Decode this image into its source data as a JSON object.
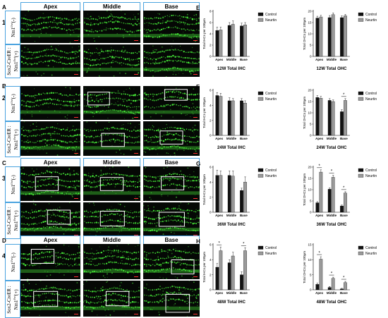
{
  "rows": [
    {
      "letter": "A",
      "age": "12W",
      "headers": [
        "Apex",
        "Middle",
        "Base"
      ],
      "genotypes": [
        {
          "main": "Nm1",
          "sup": "f/wt",
          "tail": "(-)"
        },
        {
          "line1": "Sox2-CreER :",
          "main": "Nm1",
          "sup": "f/wt",
          "tail": "(+)"
        }
      ],
      "boxes": []
    },
    {
      "letter": "B",
      "age": "24W",
      "headers": [],
      "genotypes": [
        {
          "main": "Nm1",
          "sup": "f/wt",
          "tail": "(-)"
        },
        {
          "line1": "Sox2-CreER :",
          "main": "Nm1",
          "sup": "f/wt",
          "tail": "(+)"
        }
      ],
      "boxes": [
        [
          0,
          1,
          0.08,
          0.18,
          0.38,
          0.38
        ],
        [
          0,
          2,
          0.38,
          0.1,
          0.4,
          0.32
        ],
        [
          1,
          1,
          0.32,
          0.35,
          0.4,
          0.38
        ],
        [
          1,
          2,
          0.3,
          0.28,
          0.4,
          0.38
        ]
      ]
    },
    {
      "letter": "C",
      "age": "36W",
      "headers": [
        "Apex",
        "Middle",
        "Base"
      ],
      "genotypes": [
        {
          "main": "Nm1",
          "sup": "f/wt",
          "tail": "(-)"
        },
        {
          "line1": "Sox2-CreER :",
          "main": "Nm1",
          "sup": "f/wt",
          "tail": "(+)"
        }
      ],
      "boxes": [
        [
          0,
          0,
          0.25,
          0.3,
          0.38,
          0.4
        ],
        [
          0,
          1,
          0.3,
          0.32,
          0.4,
          0.38
        ],
        [
          0,
          2,
          0.32,
          0.3,
          0.4,
          0.38
        ],
        [
          1,
          0,
          0.45,
          0.22,
          0.38,
          0.4
        ],
        [
          1,
          1,
          0.3,
          0.25,
          0.42,
          0.42
        ],
        [
          1,
          2,
          0.28,
          0.28,
          0.45,
          0.4
        ]
      ]
    },
    {
      "letter": "D",
      "age": "48W",
      "headers": [
        "Apex",
        "Middle",
        "Base"
      ],
      "genotypes": [
        {
          "main": "Nm1",
          "sup": "f/wt",
          "tail": "(-)"
        },
        {
          "line1": "Sox2-CreER :",
          "main": "Nm1",
          "sup": "f/wt",
          "tail": "(+)"
        }
      ],
      "boxes": [
        [
          0,
          0,
          0.18,
          0.15,
          0.38,
          0.4
        ],
        [
          0,
          2,
          0.5,
          0.45,
          0.4,
          0.4
        ],
        [
          1,
          0,
          0.22,
          0.3,
          0.4,
          0.42
        ],
        [
          1,
          1,
          0.4,
          0.3,
          0.4,
          0.4
        ],
        [
          1,
          2,
          0.4,
          0.38,
          0.42,
          0.5
        ]
      ]
    }
  ],
  "colors": {
    "control": "#111111",
    "neurtin": "#9a9a9a",
    "header_border": "#4aa3df",
    "green": "#4cff3c",
    "roi_box": "#ffffff"
  },
  "charts": [
    {
      "row": 0,
      "col": 0,
      "letter": "E",
      "title": "12W Total IHC",
      "ylabel": "Total IHCs per 100μm",
      "legend": [
        "Control",
        "Neurtin"
      ],
      "yticks": [
        0,
        2,
        4,
        6,
        8
      ],
      "ymax": 8,
      "categories": [
        "Apex",
        "Middle",
        "Base"
      ],
      "series": [
        {
          "name": "Control",
          "values": [
            4.6,
            5.5,
            5.4
          ]
        },
        {
          "name": "Neurtin",
          "values": [
            4.7,
            5.7,
            5.6
          ]
        }
      ],
      "errors": [
        [
          0.6,
          0.5,
          0.5
        ],
        [
          0.5,
          0.6,
          0.4
        ]
      ],
      "sig": []
    },
    {
      "row": 0,
      "col": 1,
      "title": "12W Total OHC",
      "ylabel": "Total OHCs per 100μm",
      "legend": [
        "Control",
        "Neurtin"
      ],
      "yticks": [
        0,
        5,
        10,
        15,
        20
      ],
      "ymax": 20,
      "categories": [
        "Apex",
        "Middle",
        "Base"
      ],
      "series": [
        {
          "name": "Control",
          "values": [
            17.0,
            17.2,
            17.2
          ]
        },
        {
          "name": "Neurtin",
          "values": [
            17.5,
            18.5,
            18.0
          ]
        }
      ],
      "errors": [
        [
          0.8,
          0.9,
          0.8
        ],
        [
          0.7,
          0.8,
          0.6
        ]
      ],
      "sig": []
    },
    {
      "row": 1,
      "col": 0,
      "letter": "F",
      "title": "24W Total IHC",
      "ylabel": "Total IHCs per 100μm",
      "legend": [
        "Control",
        "Neurtin"
      ],
      "yticks": [
        0,
        2,
        4,
        6
      ],
      "ymax": 6,
      "categories": [
        "Apex",
        "Middle",
        "Base"
      ],
      "series": [
        {
          "name": "Control",
          "values": [
            5.3,
            4.6,
            4.6
          ]
        },
        {
          "name": "Neurtin",
          "values": [
            5.2,
            4.6,
            4.3
          ]
        }
      ],
      "errors": [
        [
          0.4,
          0.4,
          0.3
        ],
        [
          0.4,
          0.3,
          0.3
        ]
      ],
      "sig": []
    },
    {
      "row": 1,
      "col": 1,
      "title": "24W Total OHC",
      "ylabel": "Total OHCs per 100μm",
      "legend": [
        "Control",
        "Neurtin"
      ],
      "yticks": [
        0,
        5,
        10,
        15,
        20
      ],
      "ymax": 20,
      "categories": [
        "Apex",
        "Middle",
        "Base"
      ],
      "series": [
        {
          "name": "Control",
          "values": [
            16.8,
            15.5,
            10.5
          ]
        },
        {
          "name": "Neurtin",
          "values": [
            16.5,
            15.0,
            15.5
          ]
        }
      ],
      "errors": [
        [
          0.8,
          0.8,
          0.9
        ],
        [
          0.8,
          0.7,
          0.8
        ]
      ],
      "sig": [
        {
          "cat": 2,
          "label": "*"
        }
      ]
    },
    {
      "row": 2,
      "col": 0,
      "letter": "G",
      "title": "36W Total IHC",
      "ylabel": "Total IHCs per 100μm",
      "legend": [
        "Control",
        "Neurtin"
      ],
      "yticks": [
        0,
        2,
        4,
        6
      ],
      "ymax": 6,
      "categories": [
        "Apex",
        "Middle",
        "Base"
      ],
      "series": [
        {
          "name": "Control",
          "values": [
            4.9,
            4.9,
            2.9
          ]
        },
        {
          "name": "Neurtin",
          "values": [
            4.9,
            4.8,
            4.0
          ]
        }
      ],
      "errors": [
        [
          0.7,
          0.6,
          0.3
        ],
        [
          0.6,
          0.7,
          0.7
        ]
      ],
      "sig": []
    },
    {
      "row": 2,
      "col": 1,
      "title": "36W Total OHC",
      "ylabel": "Total OHCs per 100μm",
      "legend": [
        "Control",
        "Neurtin"
      ],
      "yticks": [
        0,
        5,
        10,
        15,
        20
      ],
      "ymax": 20,
      "categories": [
        "Apex",
        "Middle",
        "Base"
      ],
      "series": [
        {
          "name": "Control",
          "values": [
            4.2,
            10.2,
            2.8
          ]
        },
        {
          "name": "Neurtin",
          "values": [
            17.8,
            15.5,
            8.5
          ]
        }
      ],
      "errors": [
        [
          0.5,
          0.6,
          0.4
        ],
        [
          1.0,
          0.9,
          0.6
        ]
      ],
      "sig": [
        {
          "cat": 0,
          "label": "*"
        },
        {
          "cat": 1,
          "label": "*"
        },
        {
          "cat": 2,
          "label": "*"
        }
      ]
    },
    {
      "row": 3,
      "col": 0,
      "letter": "H",
      "title": "48W Total IHC",
      "ylabel": "Total IHCs per 100μm",
      "legend": [
        "Control",
        "Neurtin"
      ],
      "yticks": [
        0,
        2,
        4,
        6
      ],
      "ymax": 6,
      "categories": [
        "Apex",
        "Middle",
        "Base"
      ],
      "series": [
        {
          "name": "Control",
          "values": [
            3.0,
            3.6,
            2.0
          ]
        },
        {
          "name": "Neurtin",
          "values": [
            5.2,
            4.5,
            5.2
          ]
        }
      ],
      "errors": [
        [
          0.5,
          0.4,
          0.4
        ],
        [
          0.5,
          0.5,
          0.4
        ]
      ],
      "sig": [
        {
          "cat": 0,
          "label": "*"
        },
        {
          "cat": 2,
          "label": "*"
        }
      ]
    },
    {
      "row": 3,
      "col": 1,
      "title": "48W Total OHC",
      "ylabel": "Total OHCs per 100μm",
      "legend": [
        "Control",
        "Neurtin"
      ],
      "yticks": [
        0,
        5,
        10,
        15
      ],
      "ymax": 15,
      "categories": [
        "Apex",
        "Middle",
        "Base"
      ],
      "series": [
        {
          "name": "Control",
          "values": [
            1.8,
            0.8,
            0.3
          ]
        },
        {
          "name": "Neurtin",
          "values": [
            10.2,
            3.8,
            2.4
          ]
        }
      ],
      "errors": [
        [
          0.4,
          0.3,
          0.2
        ],
        [
          0.8,
          0.4,
          0.4
        ]
      ],
      "sig": [
        {
          "cat": 0,
          "label": "*"
        },
        {
          "cat": 1,
          "label": "*"
        },
        {
          "cat": 2,
          "label": "*"
        }
      ]
    }
  ]
}
